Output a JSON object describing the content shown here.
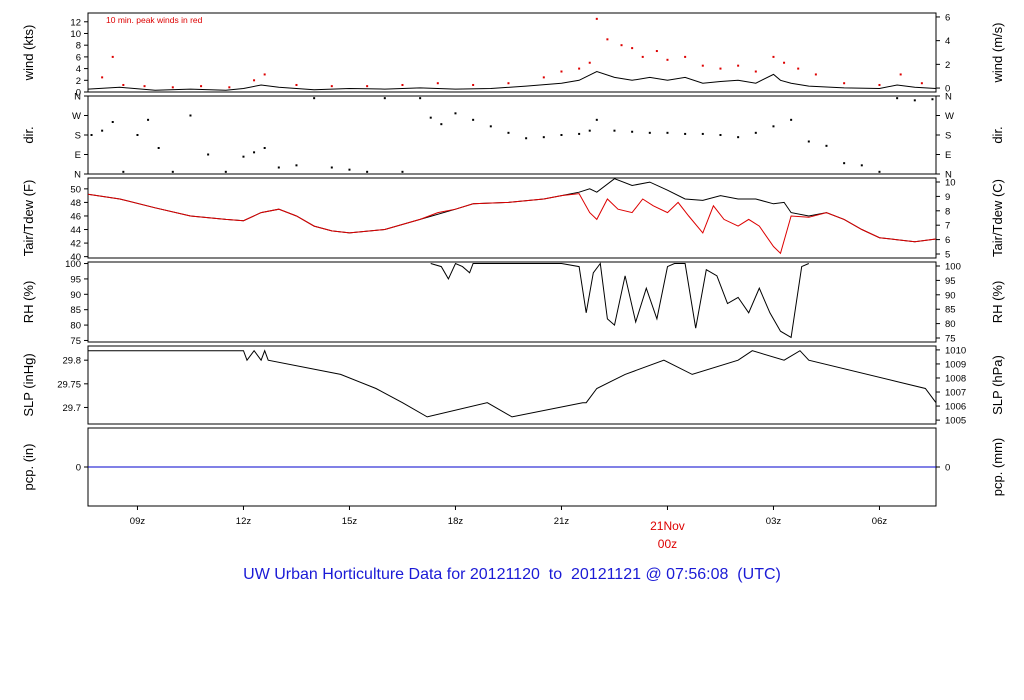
{
  "footer": {
    "title": "UW Urban Horticulture Data for 20121120  to  20121121 @ 07:56:08  (UTC)"
  },
  "colors": {
    "primary": "#000000",
    "peak": "#dd0000",
    "dewpoint": "#dd0000",
    "precip": "#0000cc",
    "title": "#1a1ad6"
  },
  "chart_data": [
    {
      "type": "line",
      "title": "",
      "annotation": "10 min. peak winds in red",
      "ylabel_left": "wind (kts)",
      "ylabel_right": "wind (m/s)",
      "ylim": [
        0,
        13.5
      ],
      "yticks_left": [
        0,
        2,
        4,
        6,
        8,
        10,
        12
      ],
      "yticks_right": [
        "0",
        "2",
        "4",
        "6"
      ],
      "xlim_hours": [
        7.6,
        31.6
      ],
      "series": [
        {
          "name": "wind",
          "color": "#000000",
          "x": [
            7.6,
            8.5,
            9.5,
            10.5,
            11.5,
            12.0,
            12.5,
            13.0,
            14.0,
            15.0,
            16.0,
            17.0,
            18.0,
            19.0,
            20.0,
            21.0,
            21.5,
            22.0,
            22.5,
            23.0,
            23.5,
            24.0,
            24.5,
            25.0,
            25.5,
            26.0,
            26.5,
            27.0,
            27.2,
            27.5,
            28.0,
            29.0,
            30.0,
            30.5,
            31.0,
            31.6
          ],
          "values": [
            0.5,
            0.8,
            0.3,
            0.5,
            0.3,
            0.6,
            1.2,
            0.8,
            0.4,
            0.6,
            0.5,
            0.7,
            0.5,
            0.6,
            1.0,
            1.5,
            2.0,
            3.5,
            2.5,
            2.0,
            2.5,
            2.0,
            2.5,
            1.5,
            1.8,
            2.0,
            1.5,
            3.0,
            2.0,
            1.5,
            1.0,
            0.7,
            0.6,
            1.2,
            0.8,
            0.6
          ]
        },
        {
          "name": "peak",
          "color": "#dd0000",
          "style": "points",
          "x": [
            8.0,
            8.3,
            8.6,
            9.2,
            10.0,
            10.8,
            11.6,
            12.3,
            12.6,
            13.5,
            14.5,
            15.5,
            16.5,
            17.5,
            18.5,
            19.5,
            20.5,
            21.0,
            21.5,
            21.8,
            22.0,
            22.3,
            22.7,
            23.0,
            23.3,
            23.7,
            24.0,
            24.5,
            25.0,
            25.5,
            26.0,
            26.5,
            27.0,
            27.3,
            27.7,
            28.2,
            29.0,
            30.0,
            30.6,
            31.2
          ],
          "values": [
            2.5,
            6.0,
            1.2,
            1.0,
            0.8,
            1.0,
            0.8,
            2.0,
            3.0,
            1.2,
            1.0,
            1.0,
            1.2,
            1.5,
            1.2,
            1.5,
            2.5,
            3.5,
            4.0,
            5.0,
            12.5,
            9.0,
            8.0,
            7.5,
            6.0,
            7.0,
            5.5,
            6.0,
            4.5,
            4.0,
            4.5,
            3.5,
            6.0,
            5.0,
            4.0,
            3.0,
            1.5,
            1.2,
            3.0,
            1.5
          ]
        }
      ]
    },
    {
      "type": "scatter",
      "ylabel_left": "dir.",
      "ylabel_right": "dir.",
      "ylim": [
        0,
        360
      ],
      "ytick_values": [
        0,
        90,
        180,
        270,
        360
      ],
      "ytick_labels": [
        "N",
        "E",
        "S",
        "W",
        "N"
      ],
      "xlim_hours": [
        7.6,
        31.6
      ],
      "series": [
        {
          "name": "dir",
          "color": "#000000",
          "x": [
            7.7,
            8.0,
            8.3,
            8.6,
            9.0,
            9.3,
            9.6,
            10.0,
            10.5,
            11.0,
            11.5,
            12.0,
            12.3,
            12.6,
            13.0,
            13.5,
            14.0,
            14.5,
            15.0,
            15.5,
            16.0,
            16.5,
            17.0,
            17.3,
            17.6,
            18.0,
            18.5,
            19.0,
            19.5,
            20.0,
            20.5,
            21.0,
            21.5,
            21.8,
            22.0,
            22.5,
            23.0,
            23.5,
            24.0,
            24.5,
            25.0,
            25.5,
            26.0,
            26.5,
            27.0,
            27.5,
            28.0,
            28.5,
            29.0,
            29.5,
            30.0,
            30.5,
            31.0,
            31.5
          ],
          "values": [
            180,
            200,
            240,
            10,
            180,
            250,
            120,
            10,
            270,
            90,
            10,
            80,
            100,
            120,
            30,
            40,
            350,
            30,
            20,
            10,
            350,
            10,
            350,
            260,
            230,
            280,
            250,
            220,
            190,
            165,
            170,
            180,
            185,
            200,
            250,
            200,
            195,
            190,
            190,
            185,
            185,
            180,
            170,
            190,
            220,
            250,
            150,
            130,
            50,
            40,
            10,
            350,
            340,
            345
          ]
        }
      ]
    },
    {
      "type": "line",
      "ylabel_left": "Tair/Tdew (F)",
      "ylabel_right": "Tair/Tdew (C)",
      "ylim": [
        39.8,
        51.6
      ],
      "yticks_left": [
        40,
        42,
        44,
        46,
        48,
        50
      ],
      "yticks_right": [
        "5",
        "6",
        "7",
        "8",
        "9",
        "10"
      ],
      "xlim_hours": [
        7.6,
        31.6
      ],
      "series": [
        {
          "name": "Tair",
          "color": "#000000",
          "x": [
            7.6,
            8.5,
            9.5,
            10.5,
            11.5,
            12.0,
            12.5,
            13.0,
            13.5,
            14.0,
            14.5,
            15.0,
            16.0,
            17.0,
            18.0,
            18.5,
            19.5,
            20.5,
            21.0,
            21.5,
            21.8,
            22.0,
            22.5,
            23.0,
            23.5,
            24.0,
            24.5,
            25.0,
            25.5,
            26.0,
            26.5,
            27.0,
            27.3,
            27.5,
            28.0,
            28.5,
            29.0,
            29.5,
            30.0,
            30.5,
            31.0,
            31.6
          ],
          "values": [
            49.2,
            48.5,
            47.2,
            46.0,
            45.5,
            45.3,
            46.5,
            47.0,
            46.0,
            44.5,
            43.8,
            43.5,
            44.0,
            45.5,
            47.0,
            47.8,
            48.0,
            48.5,
            49.0,
            49.5,
            50.0,
            49.5,
            51.5,
            50.5,
            51.0,
            49.8,
            48.5,
            48.3,
            49.0,
            48.5,
            48.5,
            47.8,
            48.0,
            46.5,
            46.0,
            46.5,
            45.5,
            44.0,
            42.8,
            42.5,
            42.2,
            42.6
          ]
        },
        {
          "name": "Tdew",
          "color": "#dd0000",
          "x": [
            7.6,
            8.5,
            9.5,
            10.5,
            11.5,
            12.0,
            12.5,
            13.0,
            13.5,
            14.0,
            14.5,
            15.0,
            16.0,
            17.0,
            17.5,
            18.0,
            18.5,
            19.5,
            20.5,
            21.0,
            21.5,
            21.8,
            22.0,
            22.3,
            22.6,
            23.0,
            23.3,
            23.6,
            24.0,
            24.3,
            24.6,
            25.0,
            25.3,
            25.6,
            26.0,
            26.3,
            26.6,
            27.0,
            27.2,
            27.5,
            28.0,
            28.5,
            29.0,
            29.5,
            30.0,
            30.5,
            31.0,
            31.6
          ],
          "values": [
            49.2,
            48.5,
            47.2,
            46.0,
            45.5,
            45.3,
            46.5,
            47.0,
            46.0,
            44.5,
            43.8,
            43.5,
            44.0,
            45.5,
            46.5,
            47.0,
            47.8,
            48.0,
            48.5,
            49.0,
            49.3,
            46.5,
            45.5,
            48.5,
            47.0,
            46.5,
            48.5,
            47.5,
            46.5,
            48.0,
            46.0,
            43.5,
            47.5,
            45.5,
            44.5,
            45.5,
            44.5,
            41.5,
            40.5,
            46.0,
            45.8,
            46.5,
            45.5,
            44.0,
            42.8,
            42.5,
            42.2,
            42.6
          ]
        }
      ]
    },
    {
      "type": "line",
      "ylabel_left": "RH (%)",
      "ylabel_right": "RH (%)",
      "ylim": [
        74.5,
        100.5
      ],
      "yticks_left": [
        75,
        80,
        85,
        90,
        95,
        100
      ],
      "yticks_right": [
        "75",
        "80",
        "85",
        "90",
        "95",
        "100"
      ],
      "xlim_hours": [
        7.6,
        31.6
      ],
      "series": [
        {
          "name": "RH",
          "color": "#000000",
          "x": [
            17.3,
            17.6,
            17.8,
            18.0,
            18.2,
            18.4,
            18.5,
            20.0,
            21.0,
            21.5,
            21.7,
            21.9,
            22.1,
            22.3,
            22.5,
            22.8,
            23.1,
            23.4,
            23.7,
            24.0,
            24.2,
            24.5,
            24.8,
            25.1,
            25.4,
            25.7,
            26.0,
            26.3,
            26.6,
            26.9,
            27.2,
            27.5,
            27.8,
            28.0
          ],
          "values": [
            100,
            99,
            95,
            100,
            99,
            97,
            100,
            100,
            100,
            99,
            84,
            97,
            100,
            82,
            80,
            96,
            81,
            92,
            82,
            99,
            100,
            100,
            79,
            98,
            96,
            87,
            89,
            84,
            92,
            84,
            78,
            76,
            99,
            100
          ]
        }
      ]
    },
    {
      "type": "line",
      "ylabel_left": "SLP (inHg)",
      "ylabel_right": "SLP (hPa)",
      "ylim": [
        29.665,
        29.83
      ],
      "yticks_left": [
        29.7,
        29.75,
        29.8
      ],
      "yticks_right": [
        "1005",
        "1006",
        "1007",
        "1008",
        "1009",
        "1010"
      ],
      "xlim_hours": [
        7.6,
        31.6
      ],
      "series": [
        {
          "name": "SLP",
          "color": "#000000",
          "x": [
            7.6,
            12.0,
            12.1,
            12.3,
            12.5,
            12.6,
            12.7,
            14.75,
            15.75,
            16.5,
            17.2,
            18.9,
            19.6,
            21.6,
            21.7,
            22.0,
            22.8,
            23.9,
            24.7,
            26.0,
            26.4,
            27.3,
            27.75,
            28.0,
            31.3,
            31.6
          ],
          "values": [
            29.82,
            29.82,
            29.8,
            29.82,
            29.8,
            29.82,
            29.8,
            29.77,
            29.74,
            29.71,
            29.68,
            29.71,
            29.68,
            29.71,
            29.71,
            29.74,
            29.77,
            29.8,
            29.77,
            29.8,
            29.82,
            29.8,
            29.82,
            29.8,
            29.74,
            29.71
          ]
        }
      ]
    },
    {
      "type": "line",
      "ylabel_left": "pcp. (in)",
      "ylabel_right": "pcp. (mm)",
      "ylim": [
        -1,
        1
      ],
      "yticks_left": [
        0
      ],
      "yticks_right": [
        "0"
      ],
      "xlim_hours": [
        7.6,
        31.6
      ],
      "x_ticks": [
        {
          "hour": 9,
          "label": "09z"
        },
        {
          "hour": 12,
          "label": "12z"
        },
        {
          "hour": 15,
          "label": "15z"
        },
        {
          "hour": 18,
          "label": "18z"
        },
        {
          "hour": 21,
          "label": "21z"
        },
        {
          "hour": 27,
          "label": "03z"
        },
        {
          "hour": 30,
          "label": "06z"
        }
      ],
      "date_marker": {
        "hour": 24,
        "date_label": "21Nov",
        "time_label": "00z"
      },
      "series": [
        {
          "name": "precip",
          "color": "#0000cc",
          "x": [
            7.6,
            31.6
          ],
          "values": [
            0,
            0
          ]
        }
      ]
    }
  ]
}
